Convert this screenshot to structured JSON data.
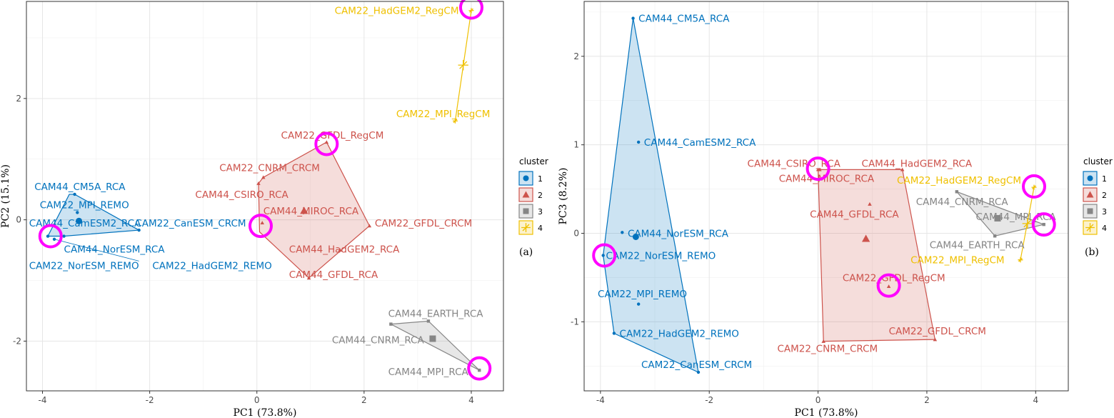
{
  "cluster_colors": {
    "1": "#0072BD",
    "2": "#CD534C",
    "3": "#868686",
    "4": "#EFC000"
  },
  "highlight_color": "#FF00FF",
  "legend": {
    "title": "cluster",
    "items": [
      "1",
      "2",
      "3",
      "4"
    ]
  },
  "chart_data": [
    {
      "type": "scatter",
      "panel_label": "(a)",
      "xlabel": "PC1 (73.8%)",
      "ylabel": "PC2 (15.1%)",
      "xlim": [
        -4.3,
        4.6
      ],
      "ylim": [
        -2.82,
        3.6
      ],
      "xticks": [
        -4,
        -2,
        0,
        2,
        4
      ],
      "yticks": [
        -2,
        0,
        2
      ],
      "xtick_labels": [
        "-4",
        "-2",
        "0",
        "2",
        "4"
      ],
      "ytick_labels": [
        "-2",
        "0",
        "2"
      ],
      "points": [
        {
          "label": "CAM44_CM5A_RCA",
          "cluster": "1",
          "x": -3.4,
          "y": 0.42,
          "lx": -4.15,
          "ly": 0.55,
          "anchor": "start"
        },
        {
          "label": "CAM22_MPI_REMO",
          "cluster": "1",
          "x": -3.35,
          "y": 0.12,
          "lx": -4.05,
          "ly": 0.25,
          "anchor": "start"
        },
        {
          "label": "CAM44_CamESM2_RCA",
          "cluster": "1",
          "x": -3.3,
          "y": -0.02,
          "lx": -4.25,
          "ly": -0.05,
          "anchor": "start"
        },
        {
          "label": "CAM22_CanESM_CRCM",
          "cluster": "1",
          "x": -2.2,
          "y": -0.17,
          "lx": -2.27,
          "ly": -0.05,
          "anchor": "start"
        },
        {
          "label": "CAM44_NorESM_RCA",
          "cluster": "1",
          "x": -3.6,
          "y": -0.27,
          "lx": -3.6,
          "ly": -0.48,
          "anchor": "start"
        },
        {
          "label": "CAM22_NorESM_REMO",
          "cluster": "1",
          "x": -3.9,
          "y": -0.27,
          "lx": -4.25,
          "ly": -0.75,
          "anchor": "start"
        },
        {
          "label": "CAM22_HadGEM2_REMO",
          "cluster": "1",
          "x": -3.78,
          "y": -0.32,
          "lx": -1.95,
          "ly": -0.75,
          "anchor": "start"
        },
        {
          "label": "CAM22_GFDL_RegCM",
          "cluster": "2",
          "x": 1.3,
          "y": 1.28,
          "lx": 0.45,
          "ly": 1.4,
          "anchor": "start"
        },
        {
          "label": "CAM22_CNRM_CRCM",
          "cluster": "2",
          "x": 0.12,
          "y": 0.7,
          "lx": -0.7,
          "ly": 0.86,
          "anchor": "start"
        },
        {
          "label": "CAM44_CSIRO_RCA",
          "cluster": "2",
          "x": 0.03,
          "y": 0.6,
          "lx": -1.15,
          "ly": 0.42,
          "anchor": "start"
        },
        {
          "label": "CAM44_MIROC_RCA",
          "cluster": "2",
          "x": 0.1,
          "y": -0.05,
          "lx": 0.12,
          "ly": 0.15,
          "anchor": "start"
        },
        {
          "label": "CAM22_GFDL_CRCM",
          "cluster": "2",
          "x": 2.1,
          "y": -0.1,
          "lx": 2.2,
          "ly": -0.05,
          "anchor": "start"
        },
        {
          "label": "CAM44_HadGEM2_RCA",
          "cluster": "2",
          "x": 1.55,
          "y": -0.5,
          "lx": 0.6,
          "ly": -0.48,
          "anchor": "start"
        },
        {
          "label": "CAM44_GFDL_RCA",
          "cluster": "2",
          "x": 0.97,
          "y": -0.96,
          "lx": 0.6,
          "ly": -0.9,
          "anchor": "start"
        },
        {
          "label": "CAM44_EARTH_RCA",
          "cluster": "3",
          "x": 3.2,
          "y": -1.67,
          "lx": 2.45,
          "ly": -1.54,
          "anchor": "start"
        },
        {
          "label": "CAM44_CNRM_RCA",
          "cluster": "3",
          "x": 2.5,
          "y": -1.72,
          "lx": 1.4,
          "ly": -1.98,
          "anchor": "start"
        },
        {
          "label": "CAM44_MPI_RCA",
          "cluster": "3",
          "x": 4.15,
          "y": -2.48,
          "lx": 2.45,
          "ly": -2.5,
          "anchor": "start"
        },
        {
          "label": "CAM22_HadGEM2_RegCM",
          "cluster": "4",
          "x": 4.0,
          "y": 3.45,
          "lx": 1.45,
          "ly": 3.45,
          "anchor": "start"
        },
        {
          "label": "CAM22_MPI_RegCM",
          "cluster": "4",
          "x": 3.7,
          "y": 1.63,
          "lx": 2.6,
          "ly": 1.75,
          "anchor": "start"
        }
      ],
      "hulls": [
        {
          "cluster": "1",
          "points": [
            [
              -3.9,
              -0.27
            ],
            [
              -3.6,
              -0.27
            ],
            [
              -2.2,
              -0.17
            ],
            [
              -3.4,
              0.42
            ],
            [
              -3.5,
              0.42
            ]
          ]
        },
        {
          "cluster": "2",
          "points": [
            [
              1.3,
              1.28
            ],
            [
              2.1,
              -0.1
            ],
            [
              0.97,
              -0.96
            ],
            [
              0.05,
              -0.2
            ],
            [
              0.03,
              0.6
            ],
            [
              0.12,
              0.7
            ]
          ]
        },
        {
          "cluster": "3",
          "points": [
            [
              2.5,
              -1.72
            ],
            [
              3.2,
              -1.67
            ],
            [
              4.15,
              -2.48
            ]
          ]
        },
        {
          "cluster": "4",
          "points": [
            [
              4.0,
              3.45
            ],
            [
              3.7,
              1.63
            ]
          ]
        }
      ],
      "centroids": [
        {
          "cluster": "1",
          "x": -3.32,
          "y": -0.02
        },
        {
          "cluster": "2",
          "x": 0.88,
          "y": 0.15
        },
        {
          "cluster": "3",
          "x": 3.28,
          "y": -1.96
        },
        {
          "cluster": "4",
          "x": 3.85,
          "y": 2.55
        }
      ],
      "highlights": [
        [
          -3.85,
          -0.27
        ],
        [
          0.07,
          -0.1
        ],
        [
          1.3,
          1.25
        ],
        [
          4.0,
          3.5
        ],
        [
          4.15,
          -2.45
        ]
      ],
      "spokes": [
        [
          -3.78,
          -0.32,
          -2.2,
          -0.68
        ]
      ]
    },
    {
      "type": "scatter",
      "panel_label": "(b)",
      "xlabel": "PC1 (73.8%)",
      "ylabel": "PC3 (8.2%)",
      "xlim": [
        -4.3,
        4.6
      ],
      "ylim": [
        -1.78,
        2.62
      ],
      "xticks": [
        -4,
        -2,
        0,
        2,
        4
      ],
      "yticks": [
        -1,
        0,
        1,
        2
      ],
      "xtick_labels": [
        "-4",
        "-2",
        "0",
        "2",
        "4"
      ],
      "ytick_labels": [
        "-1",
        "0",
        "1",
        "2"
      ],
      "points": [
        {
          "label": "CAM44_CM5A_RCA",
          "cluster": "1",
          "x": -3.4,
          "y": 2.43,
          "lx": -3.3,
          "ly": 2.43,
          "anchor": "start"
        },
        {
          "label": "CAM44_CamESM2_RCA",
          "cluster": "1",
          "x": -3.3,
          "y": 1.03,
          "lx": -3.2,
          "ly": 1.03,
          "anchor": "start"
        },
        {
          "label": "CAM44_NorESM_RCA",
          "cluster": "1",
          "x": -3.6,
          "y": 0.01,
          "lx": -3.5,
          "ly": 0.0,
          "anchor": "start"
        },
        {
          "label": "CAM22_NorESM_REMO",
          "cluster": "1",
          "x": -3.95,
          "y": -0.25,
          "lx": -3.9,
          "ly": -0.25,
          "anchor": "start"
        },
        {
          "label": "CAM22_MPI_REMO",
          "cluster": "1",
          "x": -3.3,
          "y": -0.8,
          "lx": -4.05,
          "ly": -0.68,
          "anchor": "start"
        },
        {
          "label": "CAM22_HadGEM2_REMO",
          "cluster": "1",
          "x": -3.75,
          "y": -1.13,
          "lx": -3.65,
          "ly": -1.13,
          "anchor": "start"
        },
        {
          "label": "CAM22_CanESM_CRCM",
          "cluster": "1",
          "x": -2.2,
          "y": -1.57,
          "lx": -3.25,
          "ly": -1.48,
          "anchor": "start"
        },
        {
          "label": "CAM44_CSIRO_RCA",
          "cluster": "2",
          "x": 0.0,
          "y": 0.72,
          "lx": -1.3,
          "ly": 0.79,
          "anchor": "start"
        },
        {
          "label": "CAM44_MIROC_RCA",
          "cluster": "2",
          "x": 0.03,
          "y": 0.72,
          "lx": -0.72,
          "ly": 0.62,
          "anchor": "start"
        },
        {
          "label": "CAM44_HadGEM2_RCA",
          "cluster": "2",
          "x": 1.55,
          "y": 0.72,
          "lx": 0.8,
          "ly": 0.79,
          "anchor": "start"
        },
        {
          "label": "CAM44_GFDL_RCA",
          "cluster": "2",
          "x": 0.95,
          "y": 0.33,
          "lx": -0.15,
          "ly": 0.22,
          "anchor": "start"
        },
        {
          "label": "CAM22_GFDL_RegCM",
          "cluster": "2",
          "x": 1.3,
          "y": -0.6,
          "lx": 0.45,
          "ly": -0.5,
          "anchor": "start"
        },
        {
          "label": "CAM22_GFDL_CRCM",
          "cluster": "2",
          "x": 2.15,
          "y": -1.2,
          "lx": 1.3,
          "ly": -1.1,
          "anchor": "start"
        },
        {
          "label": "CAM22_CNRM_CRCM",
          "cluster": "2",
          "x": 0.1,
          "y": -1.22,
          "lx": -0.75,
          "ly": -1.3,
          "anchor": "start"
        },
        {
          "label": "CAM44_CNRM_RCA",
          "cluster": "3",
          "x": 2.55,
          "y": 0.47,
          "lx": 1.8,
          "ly": 0.36,
          "anchor": "start"
        },
        {
          "label": "CAM44_MPI_RCA",
          "cluster": "3",
          "x": 4.15,
          "y": 0.1,
          "lx": 2.9,
          "ly": 0.19,
          "anchor": "start"
        },
        {
          "label": "CAM44_EARTH_RCA",
          "cluster": "3",
          "x": 3.25,
          "y": -0.03,
          "lx": 2.05,
          "ly": -0.13,
          "anchor": "start"
        },
        {
          "label": "CAM22_HadGEM2_RegCM",
          "cluster": "4",
          "x": 3.97,
          "y": 0.52,
          "lx": 1.45,
          "ly": 0.6,
          "anchor": "start"
        },
        {
          "label": "CAM22_MPI_RegCM",
          "cluster": "4",
          "x": 3.72,
          "y": -0.3,
          "lx": 1.7,
          "ly": -0.3,
          "anchor": "start"
        }
      ],
      "hulls": [
        {
          "cluster": "1",
          "points": [
            [
              -3.4,
              2.43
            ],
            [
              -2.2,
              -1.57
            ],
            [
              -3.75,
              -1.13
            ],
            [
              -3.95,
              -0.25
            ]
          ]
        },
        {
          "cluster": "2",
          "points": [
            [
              0.0,
              0.72
            ],
            [
              1.55,
              0.72
            ],
            [
              2.15,
              -1.2
            ],
            [
              0.1,
              -1.22
            ]
          ]
        },
        {
          "cluster": "3",
          "points": [
            [
              2.55,
              0.47
            ],
            [
              4.15,
              0.1
            ],
            [
              3.25,
              -0.03
            ]
          ]
        },
        {
          "cluster": "4",
          "points": [
            [
              3.97,
              0.52
            ],
            [
              3.72,
              -0.3
            ]
          ]
        }
      ],
      "centroids": [
        {
          "cluster": "1",
          "x": -3.35,
          "y": -0.04
        },
        {
          "cluster": "2",
          "x": 0.88,
          "y": -0.06
        },
        {
          "cluster": "3",
          "x": 3.3,
          "y": 0.17
        },
        {
          "cluster": "4",
          "x": 3.85,
          "y": 0.11
        }
      ],
      "highlights": [
        [
          -3.93,
          -0.25
        ],
        [
          0.0,
          0.73
        ],
        [
          1.3,
          -0.59
        ],
        [
          3.97,
          0.53
        ],
        [
          4.15,
          0.1
        ]
      ],
      "spokes": []
    }
  ]
}
